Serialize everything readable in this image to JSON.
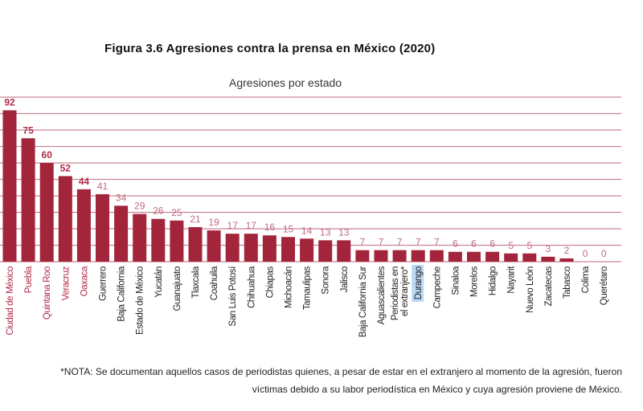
{
  "chart_data": {
    "type": "bar",
    "title": "Figura 3.6 Agresiones contra la prensa en México (2020)",
    "subtitle": "Agresiones por estado",
    "xlabel": "",
    "ylabel": "",
    "ylim": [
      0,
      100
    ],
    "grid": true,
    "gridline_step": 10,
    "categories": [
      "Ciudad de México",
      "Puebla",
      "Quintana Roo",
      "Veracruz",
      "Oaxaca",
      "Guerrero",
      "Baja California",
      "Estado de México",
      "Yucatán",
      "Guanajuato",
      "Tlaxcala",
      "Coahuila",
      "San Luis Potosí",
      "Chihuahua",
      "Chiapas",
      "Michoacán",
      "Tamaulipas",
      "Sonora",
      "Jalisco",
      "Baja California Sur",
      "Aguascalientes",
      "Periodistas en el extranjero*",
      "Durango",
      "Campeche",
      "Sinaloa",
      "Morelos",
      "Hidalgo",
      "Nayarit",
      "Nuevo León",
      "Zacatecas",
      "Tabasco",
      "Colima",
      "Querétaro"
    ],
    "values": [
      92,
      75,
      60,
      52,
      44,
      41,
      34,
      29,
      26,
      25,
      21,
      19,
      17,
      17,
      16,
      15,
      14,
      13,
      13,
      7,
      7,
      7,
      7,
      7,
      6,
      6,
      6,
      5,
      5,
      3,
      2,
      0,
      0
    ],
    "highlighted_count": 5,
    "selected_label": "Durango",
    "colors": {
      "bar": "#a3253b",
      "grid": "#c98593",
      "highlight_label": "#b02a48",
      "value_label": "#c06a80",
      "selection": "#b9d8f3"
    }
  },
  "note": "*NOTA: Se documentan aquellos casos de periodistas quienes, a pesar de estar en el extranjero al momento de la agresión, fueron víctimas debido a su labor periodística en México y cuya agresión proviene de México."
}
